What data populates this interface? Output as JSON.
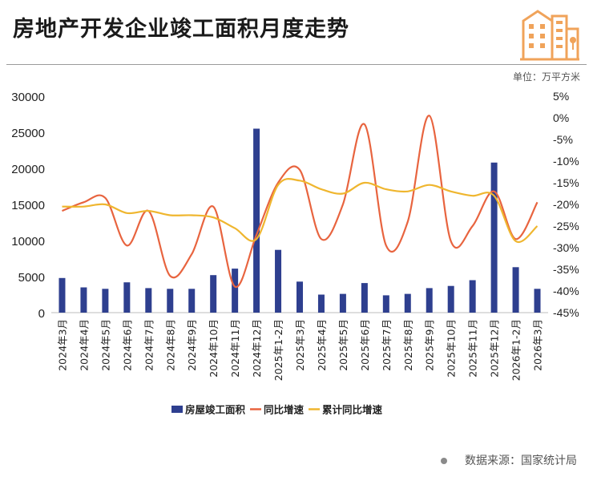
{
  "header": {
    "title": "房地产开发企业竣工面积月度走势",
    "unit": "单位：万平方米"
  },
  "footer": {
    "source": "数据来源：国家统计局"
  },
  "colors": {
    "bar": "#2e3f8f",
    "yoy": "#e8643f",
    "cum": "#efb62f",
    "text": "#333333",
    "logo": "#f0a35a"
  },
  "chart_data": {
    "type": "bar+line",
    "categories": [
      "2024年3月",
      "2024年4月",
      "2024年5月",
      "2024年6月",
      "2024年7月",
      "2024年8月",
      "2024年9月",
      "2024年10月",
      "2024年11月",
      "2024年12月",
      "2025年1-2月",
      "2025年3月",
      "2025年4月",
      "2025年5月",
      "2025年6月",
      "2025年7月",
      "2025年8月",
      "2025年9月",
      "2025年10月",
      "2025年11月",
      "2025年12月",
      "2026年1-2月",
      "2026年3月"
    ],
    "y_left": {
      "ticks": [
        0,
        5000,
        10000,
        15000,
        20000,
        25000,
        30000
      ],
      "ylim": [
        0,
        30000
      ]
    },
    "y_right": {
      "ticks": [
        -45,
        -40,
        -35,
        -30,
        -25,
        -20,
        -15,
        -10,
        -5,
        0,
        5
      ],
      "tick_labels": [
        "-45%",
        "-40%",
        "-35%",
        "-30%",
        "-25%",
        "-20%",
        "-15%",
        "-10%",
        "-5%",
        "0%",
        "5%"
      ],
      "ylim": [
        -45,
        5
      ]
    },
    "series": [
      {
        "name": "房屋竣工面积",
        "type": "bar",
        "axis": "left",
        "values": [
          4800,
          3500,
          3300,
          4200,
          3400,
          3300,
          3300,
          5200,
          6100,
          25500,
          8700,
          4300,
          2500,
          2600,
          4100,
          2400,
          2600,
          3400,
          3700,
          4500,
          20800,
          6300,
          3300
        ]
      },
      {
        "name": "同比增速",
        "type": "line",
        "axis": "right",
        "values": [
          -21.5,
          -19.5,
          -18.5,
          -29.5,
          -21.5,
          -36.5,
          -31.5,
          -20.5,
          -39,
          -27,
          -15,
          -12,
          -28,
          -20,
          -1.5,
          -29.5,
          -24,
          0.5,
          -28.5,
          -25,
          -17,
          -28,
          -19.5
        ]
      },
      {
        "name": "累计同比增速",
        "type": "line",
        "axis": "right",
        "values": [
          -20.5,
          -20.5,
          -20,
          -22,
          -21.5,
          -22.5,
          -22.5,
          -23,
          -25.5,
          -28,
          -15.5,
          -14.5,
          -16.5,
          -17.5,
          -15,
          -16.5,
          -17,
          -15.5,
          -17,
          -18,
          -18,
          -28.5,
          -25
        ]
      }
    ],
    "legend_position": "bottom"
  }
}
